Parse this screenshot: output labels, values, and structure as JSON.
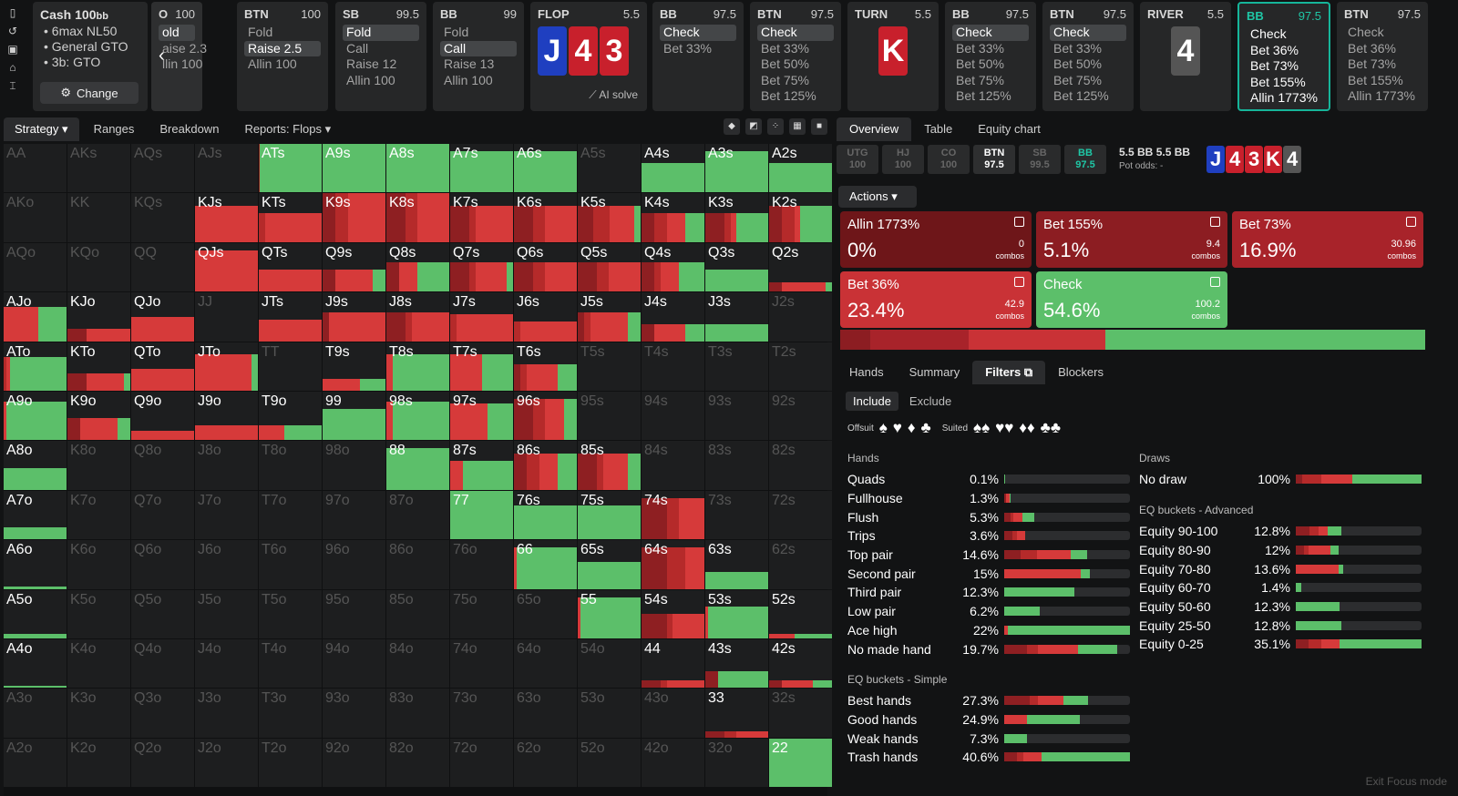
{
  "rail_icons": [
    "bookmark-icon",
    "history-icon",
    "save-icon",
    "gamepad-icon",
    "text-cursor-icon"
  ],
  "top": {
    "cash": {
      "title": "Cash",
      "stack": "100",
      "stack_unit": "bb",
      "items": [
        "6max NL50",
        "General GTO",
        "3b: GTO"
      ],
      "change_label": "Change"
    },
    "partial": {
      "pos": "O",
      "val": "100",
      "rows": [
        "old",
        "aise 2.3",
        "llin 100"
      ]
    },
    "btn1": {
      "pos": "BTN",
      "val": "100",
      "rows": [
        "Fold",
        "Raise 2.5",
        "Allin 100"
      ],
      "sel": 1
    },
    "sb": {
      "pos": "SB",
      "val": "99.5",
      "rows": [
        "Fold",
        "Call",
        "Raise 12",
        "Allin 100"
      ],
      "sel": 0
    },
    "bb1": {
      "pos": "BB",
      "val": "99",
      "rows": [
        "Fold",
        "Call",
        "Raise 13",
        "Allin 100"
      ],
      "sel": 1
    },
    "flop": {
      "label": "FLOP",
      "pot": "5.5",
      "cards": [
        "J",
        "4",
        "3"
      ],
      "ai": "AI solve"
    },
    "bb2": {
      "pos": "BB",
      "val": "97.5",
      "rows": [
        "Check",
        "Bet 33%"
      ],
      "sel": 0
    },
    "btn2": {
      "pos": "BTN",
      "val": "97.5",
      "rows": [
        "Check",
        "Bet 33%",
        "Bet 50%",
        "Bet 75%",
        "Bet 125%"
      ],
      "sel": 0
    },
    "turn": {
      "label": "TURN",
      "pot": "5.5",
      "card": "K"
    },
    "bb3": {
      "pos": "BB",
      "val": "97.5",
      "rows": [
        "Check",
        "Bet 33%",
        "Bet 50%",
        "Bet 75%",
        "Bet 125%"
      ],
      "sel": 0
    },
    "btn3": {
      "pos": "BTN",
      "val": "97.5",
      "rows": [
        "Check",
        "Bet 33%",
        "Bet 50%",
        "Bet 75%",
        "Bet 125%"
      ],
      "sel": 0
    },
    "river": {
      "label": "RIVER",
      "pot": "5.5",
      "card": "4"
    },
    "bb4": {
      "pos": "BB",
      "val": "97.5",
      "rows": [
        "Check",
        "Bet 36%",
        "Bet 73%",
        "Bet 155%",
        "Allin 1773%"
      ]
    },
    "btn4": {
      "pos": "BTN",
      "val": "97.5",
      "rows": [
        "Check",
        "Bet 36%",
        "Bet 73%",
        "Bet 155%",
        "Allin 1773%"
      ]
    }
  },
  "left_tabs": [
    "Strategy",
    "Ranges",
    "Breakdown",
    "Reports: Flops"
  ],
  "right_tabs": [
    "Overview",
    "Table",
    "Equity chart"
  ],
  "colors": {
    "check": "#5cbf6a",
    "bet_small": "#d63a3a",
    "bet_mid": "#b52a2a",
    "bet_big": "#8e1f22",
    "allin": "#6a1518",
    "empty": "#1d1e1f"
  },
  "grid": [
    [
      "AA",
      "AKs",
      "AQs",
      "AJs",
      "ATs",
      "A9s",
      "A8s",
      "A7s",
      "A6s",
      "A5s",
      "A4s",
      "A3s",
      "A2s"
    ],
    [
      "AKo",
      "KK",
      "KQs",
      "KJs",
      "KTs",
      "K9s",
      "K8s",
      "K7s",
      "K6s",
      "K5s",
      "K4s",
      "K3s",
      "K2s"
    ],
    [
      "AQo",
      "KQo",
      "QQ",
      "QJs",
      "QTs",
      "Q9s",
      "Q8s",
      "Q7s",
      "Q6s",
      "Q5s",
      "Q4s",
      "Q3s",
      "Q2s"
    ],
    [
      "AJo",
      "KJo",
      "QJo",
      "JJ",
      "JTs",
      "J9s",
      "J8s",
      "J7s",
      "J6s",
      "J5s",
      "J4s",
      "J3s",
      "J2s"
    ],
    [
      "ATo",
      "KTo",
      "QTo",
      "JTo",
      "TT",
      "T9s",
      "T8s",
      "T7s",
      "T6s",
      "T5s",
      "T4s",
      "T3s",
      "T2s"
    ],
    [
      "A9o",
      "K9o",
      "Q9o",
      "J9o",
      "T9o",
      "99",
      "98s",
      "97s",
      "96s",
      "95s",
      "94s",
      "93s",
      "92s"
    ],
    [
      "A8o",
      "K8o",
      "Q8o",
      "J8o",
      "T8o",
      "98o",
      "88",
      "87s",
      "86s",
      "85s",
      "84s",
      "83s",
      "82s"
    ],
    [
      "A7o",
      "K7o",
      "Q7o",
      "J7o",
      "T7o",
      "97o",
      "87o",
      "77",
      "76s",
      "75s",
      "74s",
      "73s",
      "72s"
    ],
    [
      "A6o",
      "K6o",
      "Q6o",
      "J6o",
      "T6o",
      "96o",
      "86o",
      "76o",
      "66",
      "65s",
      "64s",
      "63s",
      "62s"
    ],
    [
      "A5o",
      "K5o",
      "Q5o",
      "J5o",
      "T5o",
      "95o",
      "85o",
      "75o",
      "65o",
      "55",
      "54s",
      "53s",
      "52s"
    ],
    [
      "A4o",
      "K4o",
      "Q4o",
      "J4o",
      "T4o",
      "94o",
      "84o",
      "74o",
      "64o",
      "54o",
      "44",
      "43s",
      "42s"
    ],
    [
      "A3o",
      "K3o",
      "Q3o",
      "J3o",
      "T3o",
      "93o",
      "83o",
      "73o",
      "63o",
      "53o",
      "43o",
      "33",
      "32s"
    ],
    [
      "A2o",
      "K2o",
      "Q2o",
      "J2o",
      "T2o",
      "92o",
      "82o",
      "72o",
      "62o",
      "52o",
      "42o",
      "32o",
      "22"
    ]
  ],
  "cell_strategy": {
    "ATs": {
      "h": 1,
      "mix": [
        0,
        0.02,
        0,
        0,
        0.98
      ]
    },
    "A9s": {
      "h": 1,
      "mix": [
        0,
        0,
        0,
        0,
        1
      ]
    },
    "A8s": {
      "h": 1,
      "mix": [
        0,
        0,
        0,
        0,
        1
      ]
    },
    "A7s": {
      "h": 0.85,
      "mix": [
        0,
        0,
        0,
        0,
        1
      ]
    },
    "A6s": {
      "h": 0.85,
      "mix": [
        0,
        0,
        0,
        0,
        1
      ]
    },
    "A4s": {
      "h": 0.6,
      "mix": [
        0,
        0,
        0,
        0,
        1
      ]
    },
    "A3s": {
      "h": 0.85,
      "mix": [
        0,
        0,
        0,
        0,
        1
      ]
    },
    "A2s": {
      "h": 0.6,
      "mix": [
        0,
        0,
        0,
        0,
        1
      ]
    },
    "KJs": {
      "h": 0.75,
      "mix": [
        0,
        0,
        0,
        1,
        0
      ]
    },
    "KTs": {
      "h": 0.6,
      "mix": [
        0,
        0,
        0.1,
        0.9,
        0
      ]
    },
    "K9s": {
      "h": 1,
      "mix": [
        0,
        0.2,
        0.2,
        0.6,
        0
      ]
    },
    "K8s": {
      "h": 1,
      "mix": [
        0,
        0.3,
        0.2,
        0.5,
        0
      ]
    },
    "K7s": {
      "h": 0.75,
      "mix": [
        0,
        0.3,
        0.1,
        0.6,
        0
      ]
    },
    "K6s": {
      "h": 0.75,
      "mix": [
        0,
        0.3,
        0.2,
        0.5,
        0
      ]
    },
    "K5s": {
      "h": 0.75,
      "mix": [
        0,
        0.25,
        0.25,
        0.4,
        0.1
      ]
    },
    "K4s": {
      "h": 0.6,
      "mix": [
        0,
        0.2,
        0.2,
        0.3,
        0.3
      ]
    },
    "K3s": {
      "h": 0.6,
      "mix": [
        0,
        0.3,
        0.1,
        0.1,
        0.5
      ]
    },
    "K2s": {
      "h": 0.75,
      "mix": [
        0,
        0.2,
        0.2,
        0.1,
        0.5
      ]
    },
    "QJs": {
      "h": 0.85,
      "mix": [
        0,
        0,
        0,
        1,
        0
      ]
    },
    "QTs": {
      "h": 0.45,
      "mix": [
        0,
        0,
        0,
        1,
        0
      ]
    },
    "Q9s": {
      "h": 0.45,
      "mix": [
        0,
        0.2,
        0,
        0.6,
        0.2
      ]
    },
    "Q8s": {
      "h": 0.6,
      "mix": [
        0,
        0.2,
        0,
        0.3,
        0.5
      ]
    },
    "Q7s": {
      "h": 0.6,
      "mix": [
        0,
        0.3,
        0.1,
        0.5,
        0.1
      ]
    },
    "Q6s": {
      "h": 0.6,
      "mix": [
        0,
        0.3,
        0.2,
        0.5,
        0
      ]
    },
    "Q5s": {
      "h": 0.6,
      "mix": [
        0,
        0.3,
        0.2,
        0.5,
        0
      ]
    },
    "Q4s": {
      "h": 0.6,
      "mix": [
        0,
        0.2,
        0.1,
        0.3,
        0.4
      ]
    },
    "Q3s": {
      "h": 0.45,
      "mix": [
        0,
        0,
        0,
        0,
        1
      ]
    },
    "Q2s": {
      "h": 0.2,
      "mix": [
        0,
        0.2,
        0,
        0.7,
        0.1
      ]
    },
    "AJo": {
      "h": 0.7,
      "mix": [
        0,
        0,
        0,
        0.55,
        0.45
      ]
    },
    "KJo": {
      "h": 0.25,
      "mix": [
        0,
        0.3,
        0,
        0.7,
        0
      ]
    },
    "QJo": {
      "h": 0.5,
      "mix": [
        0,
        0,
        0,
        1,
        0
      ]
    },
    "JTs": {
      "h": 0.45,
      "mix": [
        0,
        0,
        0,
        1,
        0
      ]
    },
    "J9s": {
      "h": 0.6,
      "mix": [
        0,
        0.1,
        0,
        0.9,
        0
      ]
    },
    "J8s": {
      "h": 0.6,
      "mix": [
        0,
        0.3,
        0.1,
        0.6,
        0
      ]
    },
    "J7s": {
      "h": 0.55,
      "mix": [
        0,
        0,
        0.1,
        0.9,
        0
      ]
    },
    "J6s": {
      "h": 0.4,
      "mix": [
        0,
        0,
        0.1,
        0.9,
        0
      ]
    },
    "J5s": {
      "h": 0.6,
      "mix": [
        0,
        0.1,
        0.1,
        0.6,
        0.2
      ]
    },
    "J4s": {
      "h": 0.35,
      "mix": [
        0,
        0.2,
        0,
        0.5,
        0.3
      ]
    },
    "J3s": {
      "h": 0.35,
      "mix": [
        0,
        0,
        0,
        0,
        1
      ]
    },
    "ATo": {
      "h": 0.7,
      "mix": [
        0,
        0,
        0.05,
        0.05,
        0.9
      ]
    },
    "KTo": {
      "h": 0.35,
      "mix": [
        0,
        0.3,
        0,
        0.6,
        0.1
      ]
    },
    "QTo": {
      "h": 0.45,
      "mix": [
        0,
        0,
        0,
        1,
        0
      ]
    },
    "JTo": {
      "h": 0.75,
      "mix": [
        0,
        0,
        0,
        0.9,
        0.1
      ]
    },
    "T9s": {
      "h": 0.25,
      "mix": [
        0,
        0,
        0,
        0.6,
        0.4
      ]
    },
    "T8s": {
      "h": 0.75,
      "mix": [
        0,
        0,
        0,
        0.1,
        0.9
      ]
    },
    "T7s": {
      "h": 0.75,
      "mix": [
        0,
        0,
        0,
        0.5,
        0.5
      ]
    },
    "T6s": {
      "h": 0.55,
      "mix": [
        0,
        0.1,
        0.1,
        0.5,
        0.3
      ]
    },
    "A9o": {
      "h": 0.8,
      "mix": [
        0,
        0,
        0,
        0.05,
        0.95
      ]
    },
    "K9o": {
      "h": 0.45,
      "mix": [
        0,
        0.2,
        0,
        0.6,
        0.2
      ]
    },
    "Q9o": {
      "h": 0.2,
      "mix": [
        0,
        0,
        0,
        1,
        0
      ]
    },
    "J9o": {
      "h": 0.3,
      "mix": [
        0,
        0,
        0,
        1,
        0
      ]
    },
    "T9o": {
      "h": 0.3,
      "mix": [
        0,
        0,
        0,
        0.4,
        0.6
      ]
    },
    "99": {
      "h": 0.65,
      "mix": [
        0,
        0,
        0,
        0,
        1
      ]
    },
    "98s": {
      "h": 0.8,
      "mix": [
        0,
        0,
        0,
        0.1,
        0.9
      ]
    },
    "97s": {
      "h": 0.75,
      "mix": [
        0,
        0,
        0,
        0.6,
        0.4
      ]
    },
    "96s": {
      "h": 0.85,
      "mix": [
        0,
        0.3,
        0.2,
        0.3,
        0.2
      ]
    },
    "A8o": {
      "h": 0.45,
      "mix": [
        0,
        0,
        0,
        0,
        1
      ]
    },
    "88": {
      "h": 0.85,
      "mix": [
        0,
        0,
        0,
        0,
        1
      ]
    },
    "87s": {
      "h": 0.6,
      "mix": [
        0,
        0,
        0,
        0.2,
        0.8
      ]
    },
    "86s": {
      "h": 0.75,
      "mix": [
        0,
        0.2,
        0.2,
        0.3,
        0.3
      ]
    },
    "85s": {
      "h": 0.75,
      "mix": [
        0,
        0.3,
        0.1,
        0.4,
        0.2
      ]
    },
    "A7o": {
      "h": 0.25,
      "mix": [
        0,
        0,
        0,
        0,
        1
      ]
    },
    "77": {
      "h": 1,
      "mix": [
        0,
        0,
        0,
        0,
        1
      ]
    },
    "76s": {
      "h": 0.7,
      "mix": [
        0,
        0,
        0,
        0,
        1
      ]
    },
    "75s": {
      "h": 0.7,
      "mix": [
        0,
        0,
        0,
        0,
        1
      ]
    },
    "74s": {
      "h": 0.85,
      "mix": [
        0,
        0.4,
        0.2,
        0.4,
        0
      ]
    },
    "A6o": {
      "h": 0.05,
      "mix": [
        0,
        0,
        0,
        0,
        1
      ]
    },
    "66": {
      "h": 0.85,
      "mix": [
        0,
        0,
        0,
        0.05,
        0.95
      ]
    },
    "65s": {
      "h": 0.55,
      "mix": [
        0,
        0,
        0,
        0,
        1
      ]
    },
    "64s": {
      "h": 0.85,
      "mix": [
        0,
        0.4,
        0.3,
        0.3,
        0
      ]
    },
    "63s": {
      "h": 0.35,
      "mix": [
        0,
        0,
        0,
        0,
        1
      ]
    },
    "A5o": {
      "h": 0.1,
      "mix": [
        0,
        0,
        0,
        0,
        1
      ]
    },
    "55": {
      "h": 0.85,
      "mix": [
        0,
        0,
        0,
        0.05,
        0.95
      ]
    },
    "54s": {
      "h": 0.5,
      "mix": [
        0,
        0.4,
        0.1,
        0.5,
        0
      ]
    },
    "53s": {
      "h": 0.65,
      "mix": [
        0,
        0,
        0,
        0.05,
        0.95
      ]
    },
    "52s": {
      "h": 0.1,
      "mix": [
        0,
        0,
        0,
        0.4,
        0.6
      ]
    },
    "A4o": {
      "h": 0.05,
      "mix": [
        0,
        0,
        0,
        0,
        1
      ]
    },
    "44": {
      "h": 0.15,
      "mix": [
        0,
        0.3,
        0.1,
        0.6,
        0
      ]
    },
    "43s": {
      "h": 0.35,
      "mix": [
        0,
        0.2,
        0,
        0,
        0.8
      ]
    },
    "42s": {
      "h": 0.15,
      "mix": [
        0,
        0.2,
        0,
        0.5,
        0.3
      ]
    },
    "33": {
      "h": 0.12,
      "mix": [
        0,
        0.3,
        0.2,
        0.5,
        0
      ]
    },
    "22": {
      "h": 1,
      "mix": [
        0,
        0,
        0,
        0,
        1
      ]
    }
  },
  "positions": [
    {
      "p": "UTG",
      "v": "100",
      "s": "off"
    },
    {
      "p": "HJ",
      "v": "100",
      "s": "off"
    },
    {
      "p": "CO",
      "v": "100",
      "s": "off"
    },
    {
      "p": "BTN",
      "v": "97.5",
      "s": "on"
    },
    {
      "p": "SB",
      "v": "99.5",
      "s": "off"
    },
    {
      "p": "BB",
      "v": "97.5",
      "s": "bb"
    }
  ],
  "pot": {
    "a": "5.5 BB",
    "b": "5.5 BB",
    "odds_label": "Pot odds:",
    "odds": "-"
  },
  "board": [
    "J",
    "4",
    "3",
    "K",
    "4"
  ],
  "actions_label": "Actions",
  "actions": [
    {
      "name": "Allin 1773%",
      "pct": "0%",
      "combos": "0",
      "clabel": "combos",
      "color": "#6e1619"
    },
    {
      "name": "Bet 155%",
      "pct": "5.1%",
      "combos": "9.4",
      "clabel": "combos",
      "color": "#8c1d22"
    },
    {
      "name": "Bet 73%",
      "pct": "16.9%",
      "combos": "30.96",
      "clabel": "combos",
      "color": "#a8232a"
    },
    {
      "name": "Bet 36%",
      "pct": "23.4%",
      "combos": "42.9",
      "clabel": "combos",
      "color": "#c93236"
    },
    {
      "name": "Check",
      "pct": "54.6%",
      "combos": "100.2",
      "clabel": "combos",
      "color": "#5cbf6a"
    }
  ],
  "freq": [
    0.0,
    5.1,
    16.9,
    23.4,
    54.6
  ],
  "bottom_tabs": [
    "Hands",
    "Summary",
    "Filters",
    "Blockers"
  ],
  "inex": [
    "Include",
    "Exclude"
  ],
  "suits": {
    "offsuit": "Offsuit",
    "suited": "Suited",
    "syms": [
      "♠",
      "♥",
      "♦",
      "♣"
    ]
  },
  "hands_title": "Hands",
  "hands": [
    {
      "n": "Quads",
      "p": "0.1%",
      "f": 0.001,
      "mix": [
        0,
        0,
        0,
        0,
        0
      ]
    },
    {
      "n": "Fullhouse",
      "p": "1.3%",
      "f": 0.05,
      "mix": [
        0,
        0.3,
        0,
        0.5,
        0.2
      ]
    },
    {
      "n": "Flush",
      "p": "5.3%",
      "f": 0.24,
      "mix": [
        0,
        0.2,
        0.1,
        0.3,
        0.4
      ]
    },
    {
      "n": "Trips",
      "p": "3.6%",
      "f": 0.17,
      "mix": [
        0,
        0.4,
        0.2,
        0.4,
        0
      ]
    },
    {
      "n": "Top pair",
      "p": "14.6%",
      "f": 0.66,
      "mix": [
        0,
        0.2,
        0.2,
        0.4,
        0.2
      ]
    },
    {
      "n": "Second pair",
      "p": "15%",
      "f": 0.68,
      "mix": [
        0,
        0,
        0,
        0.9,
        0.1
      ]
    },
    {
      "n": "Third pair",
      "p": "12.3%",
      "f": 0.56,
      "mix": [
        0,
        0,
        0,
        0,
        1
      ]
    },
    {
      "n": "Low pair",
      "p": "6.2%",
      "f": 0.28,
      "mix": [
        0,
        0,
        0,
        0,
        1
      ]
    },
    {
      "n": "Ace high",
      "p": "22%",
      "f": 1,
      "mix": [
        0,
        0,
        0,
        0.03,
        0.97
      ]
    },
    {
      "n": "No made hand",
      "p": "19.7%",
      "f": 0.9,
      "mix": [
        0,
        0.2,
        0.1,
        0.35,
        0.35
      ]
    }
  ],
  "eq_simple_title": "EQ buckets - Simple",
  "eq_simple": [
    {
      "n": "Best hands",
      "p": "27.3%",
      "f": 0.67,
      "mix": [
        0,
        0.3,
        0.1,
        0.3,
        0.3
      ]
    },
    {
      "n": "Good hands",
      "p": "24.9%",
      "f": 0.6,
      "mix": [
        0,
        0,
        0,
        0.3,
        0.7
      ]
    },
    {
      "n": "Weak hands",
      "p": "7.3%",
      "f": 0.18,
      "mix": [
        0,
        0,
        0,
        0,
        1
      ]
    },
    {
      "n": "Trash hands",
      "p": "40.6%",
      "f": 1,
      "mix": [
        0,
        0.1,
        0.05,
        0.15,
        0.7
      ]
    }
  ],
  "draws_title": "Draws",
  "draws": [
    {
      "n": "No draw",
      "p": "100%",
      "f": 1,
      "mix": [
        0,
        0.05,
        0.15,
        0.25,
        0.55
      ]
    }
  ],
  "eq_adv_title": "EQ buckets - Advanced",
  "eq_adv": [
    {
      "n": "Equity 90-100",
      "p": "12.8%",
      "f": 0.36,
      "mix": [
        0,
        0.3,
        0.2,
        0.2,
        0.3
      ]
    },
    {
      "n": "Equity 80-90",
      "p": "12%",
      "f": 0.34,
      "mix": [
        0,
        0.2,
        0.1,
        0.5,
        0.2
      ]
    },
    {
      "n": "Equity 70-80",
      "p": "13.6%",
      "f": 0.38,
      "mix": [
        0,
        0,
        0,
        0.9,
        0.1
      ]
    },
    {
      "n": "Equity 60-70",
      "p": "1.4%",
      "f": 0.04,
      "mix": [
        0,
        0,
        0,
        0,
        1
      ]
    },
    {
      "n": "Equity 50-60",
      "p": "12.3%",
      "f": 0.35,
      "mix": [
        0,
        0,
        0,
        0,
        1
      ]
    },
    {
      "n": "Equity 25-50",
      "p": "12.8%",
      "f": 0.36,
      "mix": [
        0,
        0,
        0,
        0,
        1
      ]
    },
    {
      "n": "Equity 0-25",
      "p": "35.1%",
      "f": 1,
      "mix": [
        0,
        0.1,
        0.1,
        0.15,
        0.65
      ]
    }
  ],
  "exit": "Exit Focus mode"
}
